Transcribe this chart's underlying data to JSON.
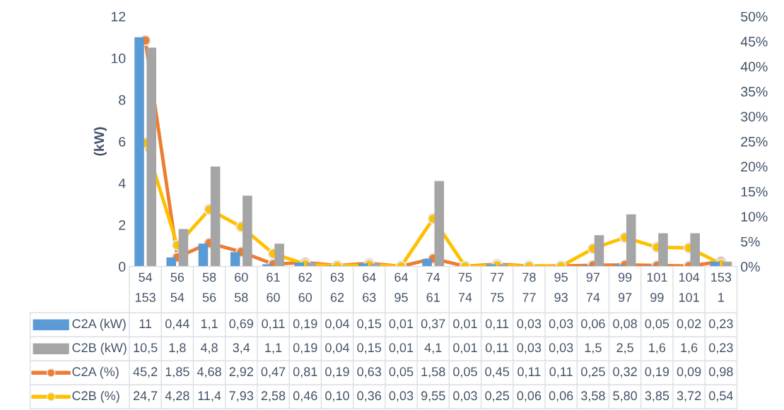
{
  "chart_data": {
    "type": "bar",
    "ylabel": "(kW)",
    "grid": false,
    "legend": "bottom",
    "marker": "circle",
    "line_style": "solid",
    "categories": [
      "54\n153",
      "56\n54",
      "58\n56",
      "60\n58",
      "61\n60",
      "62\n60",
      "63\n62",
      "64\n63",
      "64\n95",
      "74\n61",
      "75\n74",
      "77\n75",
      "78\n77",
      "95\n93",
      "97\n74",
      "99\n97",
      "101\n99",
      "104\n101",
      "153\n1"
    ],
    "ylim": [
      0,
      12
    ],
    "yticks": [
      0,
      2,
      4,
      6,
      8,
      10,
      12
    ],
    "y2lim": [
      0,
      50
    ],
    "y2ticks": [
      {
        "value": 0,
        "label": "0%"
      },
      {
        "value": 5,
        "label": "5%"
      },
      {
        "value": 10,
        "label": "10%"
      },
      {
        "value": 15,
        "label": "15%"
      },
      {
        "value": 20,
        "label": "20%"
      },
      {
        "value": 25,
        "label": "25%"
      },
      {
        "value": 30,
        "label": "30%"
      },
      {
        "value": 35,
        "label": "35%"
      },
      {
        "value": 40,
        "label": "40%"
      },
      {
        "value": 45,
        "label": "45%"
      },
      {
        "value": 50,
        "label": "50%"
      }
    ],
    "series": [
      {
        "name": "C2A (kW)",
        "color": "#5b9bd5",
        "values": [
          11,
          0.44,
          1.1,
          0.69,
          0.11,
          0.19,
          0.04,
          0.15,
          0.01,
          0.37,
          0.01,
          0.11,
          0.03,
          0.03,
          0.06,
          0.08,
          0.05,
          0.02,
          0.23
        ],
        "value_labels": [
          "11",
          "0,44",
          "1,1",
          "0,69",
          "0,11",
          "0,19",
          "0,04",
          "0,15",
          "0,01",
          "0,37",
          "0,01",
          "0,11",
          "0,03",
          "0,03",
          "0,06",
          "0,08",
          "0,05",
          "0,02",
          "0,23"
        ]
      },
      {
        "name": "C2B (kW)",
        "color": "#a5a5a5",
        "values": [
          10.5,
          1.8,
          4.8,
          3.4,
          1.1,
          0.19,
          0.04,
          0.15,
          0.01,
          4.1,
          0.01,
          0.11,
          0.03,
          0.03,
          1.5,
          2.5,
          1.6,
          1.6,
          0.23
        ],
        "value_labels": [
          "10,5",
          "1,8",
          "4,8",
          "3,4",
          "1,1",
          "0,19",
          "0,04",
          "0,15",
          "0,01",
          "4,1",
          "0,01",
          "0,11",
          "0,03",
          "0,03",
          "1,5",
          "2,5",
          "1,6",
          "1,6",
          "0,23"
        ]
      },
      {
        "name": "C2A (%)",
        "type": "line",
        "axis": "y2",
        "color": "#ed7d31",
        "values": [
          45.2,
          1.85,
          4.68,
          2.92,
          0.47,
          0.81,
          0.19,
          0.63,
          0.05,
          1.58,
          0.05,
          0.45,
          0.11,
          0.11,
          0.25,
          0.32,
          0.19,
          0.09,
          0.98
        ],
        "value_labels": [
          "45,2",
          "1,85",
          "4,68",
          "2,92",
          "0,47",
          "0,81",
          "0,19",
          "0,63",
          "0,05",
          "1,58",
          "0,05",
          "0,45",
          "0,11",
          "0,11",
          "0,25",
          "0,32",
          "0,19",
          "0,09",
          "0,98"
        ]
      },
      {
        "name": "C2B (%)",
        "type": "line",
        "axis": "y2",
        "color": "#ffc000",
        "values": [
          24.7,
          4.28,
          11.4,
          7.93,
          2.58,
          0.46,
          0.1,
          0.36,
          0.03,
          9.55,
          0.03,
          0.25,
          0.06,
          0.06,
          3.58,
          5.8,
          3.85,
          3.72,
          0.54
        ],
        "value_labels": [
          "24,7",
          "4,28",
          "11,4",
          "7,93",
          "2,58",
          "0,46",
          "0,10",
          "0,36",
          "0,03",
          "9,55",
          "0,03",
          "0,25",
          "0,06",
          "0,06",
          "3,58",
          "5,80",
          "3,85",
          "3,72",
          "0,54"
        ]
      }
    ]
  }
}
